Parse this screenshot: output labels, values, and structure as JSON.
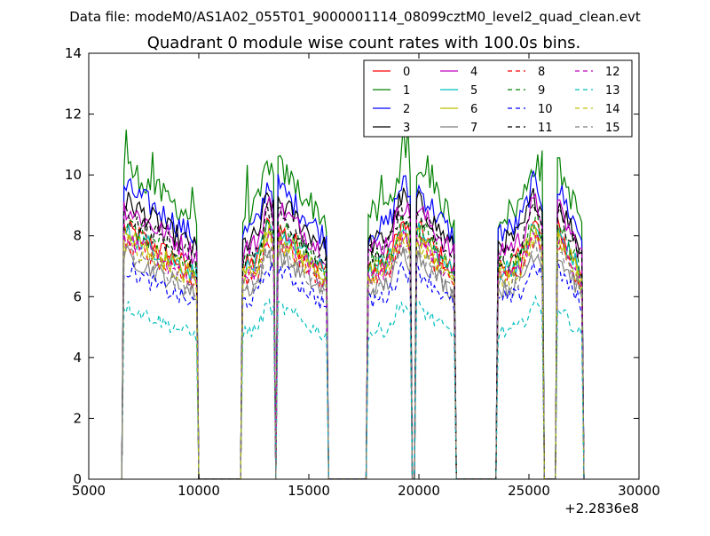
{
  "figure": {
    "suptitle": "Data file: modeM0/AS1A02_055T01_9000001114_08099cztM0_level2_quad_clean.evt",
    "title": "Quadrant 0 module wise count rates with 100.0s bins.",
    "offset_text": "+2.2836e8"
  },
  "chart_data": {
    "type": "line",
    "title": "Quadrant 0 module wise count rates with 100.0s bins.",
    "xlabel": "",
    "ylabel": "",
    "xlim": [
      5000,
      30000
    ],
    "ylim": [
      0,
      14
    ],
    "x_offset": 228360000,
    "xticks": [
      5000,
      10000,
      15000,
      20000,
      25000,
      30000
    ],
    "yticks": [
      0,
      2,
      4,
      6,
      8,
      10,
      12,
      14
    ],
    "grid": false,
    "legend": {
      "placement": "top-right",
      "columns": 4
    },
    "segments": [
      {
        "start": 6600,
        "end": 9900,
        "shape": "decay"
      },
      {
        "start": 12000,
        "end": 13400,
        "shape": "rise"
      },
      {
        "start": 13600,
        "end": 15800,
        "shape": "decay"
      },
      {
        "start": 17700,
        "end": 19600,
        "shape": "rise"
      },
      {
        "start": 19900,
        "end": 21600,
        "shape": "decay"
      },
      {
        "start": 23600,
        "end": 25600,
        "shape": "rise"
      },
      {
        "start": 26300,
        "end": 27400,
        "shape": "decay"
      }
    ],
    "series": [
      {
        "name": "0",
        "color": "#ff0000",
        "dash": "solid",
        "level": 7.4
      },
      {
        "name": "1",
        "color": "#008000",
        "dash": "solid",
        "level": 9.2
      },
      {
        "name": "2",
        "color": "#0000ff",
        "dash": "solid",
        "level": 8.6
      },
      {
        "name": "3",
        "color": "#000000",
        "dash": "solid",
        "level": 8.2
      },
      {
        "name": "4",
        "color": "#bf00bf",
        "dash": "solid",
        "level": 8.0
      },
      {
        "name": "5",
        "color": "#00bfbf",
        "dash": "solid",
        "level": 7.3
      },
      {
        "name": "6",
        "color": "#bfbf00",
        "dash": "solid",
        "level": 7.2
      },
      {
        "name": "7",
        "color": "#808080",
        "dash": "solid",
        "level": 6.6
      },
      {
        "name": "8",
        "color": "#ff0000",
        "dash": "dashed",
        "level": 7.0
      },
      {
        "name": "9",
        "color": "#008000",
        "dash": "dashed",
        "level": 7.5
      },
      {
        "name": "10",
        "color": "#0000ff",
        "dash": "dashed",
        "level": 6.2
      },
      {
        "name": "11",
        "color": "#000000",
        "dash": "dashed",
        "level": 7.8
      },
      {
        "name": "12",
        "color": "#bf00bf",
        "dash": "dashed",
        "level": 7.1
      },
      {
        "name": "13",
        "color": "#00bfbf",
        "dash": "dashed",
        "level": 5.1
      },
      {
        "name": "14",
        "color": "#bfbf00",
        "dash": "dashed",
        "level": 7.0
      },
      {
        "name": "15",
        "color": "#808080",
        "dash": "dashed",
        "level": 6.7
      }
    ]
  }
}
